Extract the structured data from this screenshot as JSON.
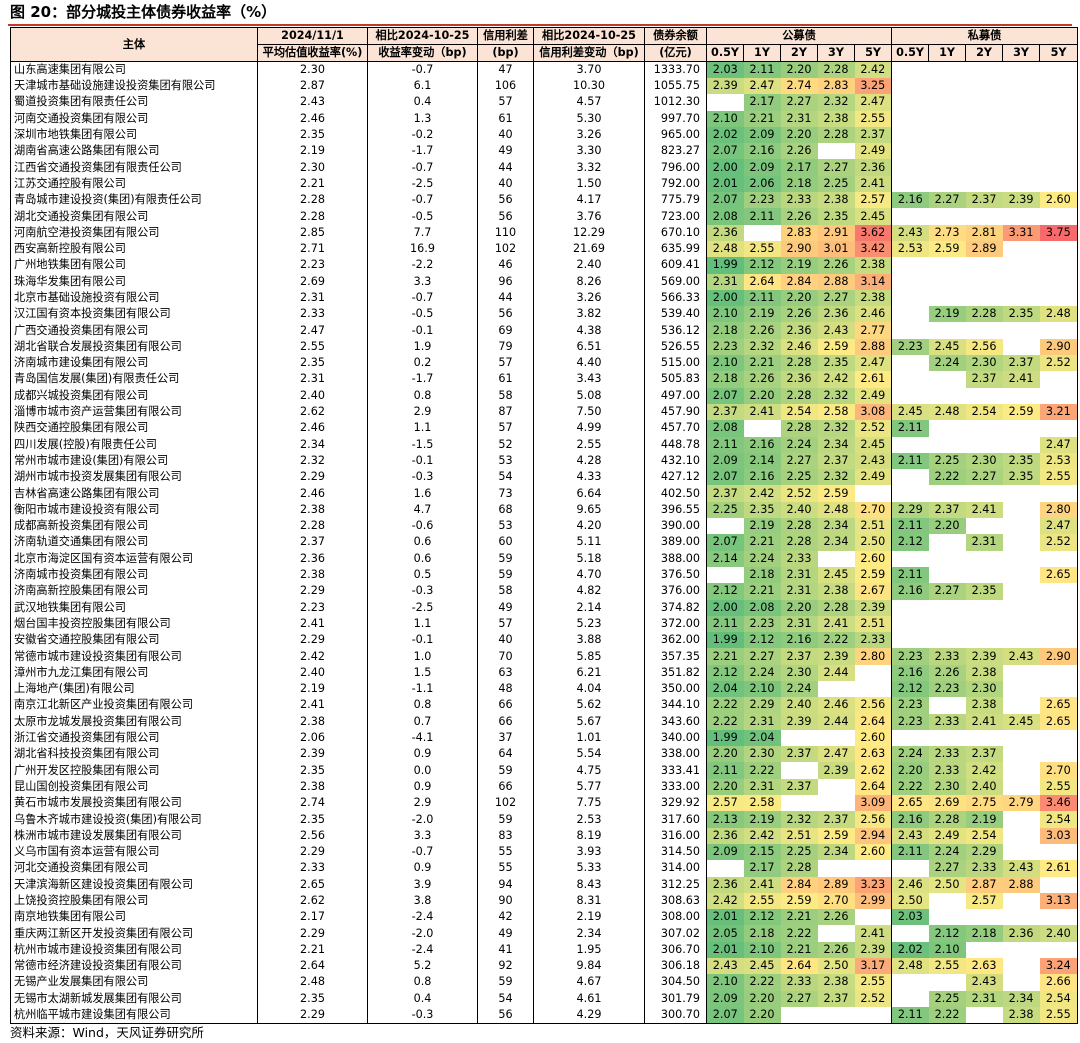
{
  "figure_title": "图 20：部分城投主体债券收益率（%）",
  "source": "资料来源：Wind，天风证券研究所",
  "header": {
    "entity": "主体",
    "col1": [
      "2024/11/1",
      "平均估值收益率(%)"
    ],
    "col2": [
      "相比2024-10-25",
      "收益率变动（bp)"
    ],
    "col3": [
      "信用利差",
      "(bp)"
    ],
    "col4": [
      "相比2024-10-25",
      "信用利差变动（bp)"
    ],
    "col5": [
      "债券余额",
      "(亿元)"
    ],
    "public_group": "公募债",
    "private_group": "私募债",
    "tenors": [
      "0.5Y",
      "1Y",
      "2Y",
      "3Y",
      "5Y"
    ]
  },
  "rows": [
    [
      "山东高速集团有限公司",
      "2.30",
      "-0.7",
      "47",
      "3.70",
      "1333.70",
      [
        "2.03",
        "2.11",
        "2.20",
        "2.28",
        "2.42"
      ],
      [
        "",
        "",
        "",
        "",
        ""
      ]
    ],
    [
      "天津城市基础设施建设投资集团有限公司",
      "2.87",
      "6.1",
      "106",
      "10.30",
      "1055.75",
      [
        "2.39",
        "2.47",
        "2.74",
        "2.83",
        "3.25"
      ],
      [
        "",
        "",
        "",
        "",
        ""
      ]
    ],
    [
      "蜀道投资集团有限责任公司",
      "2.43",
      "0.4",
      "57",
      "4.57",
      "1012.30",
      [
        "",
        "2.17",
        "2.27",
        "2.32",
        "2.47"
      ],
      [
        "",
        "",
        "",
        "",
        ""
      ]
    ],
    [
      "河南交通投资集团有限公司",
      "2.46",
      "1.3",
      "61",
      "5.30",
      "997.70",
      [
        "2.10",
        "2.21",
        "2.31",
        "2.38",
        "2.55"
      ],
      [
        "",
        "",
        "",
        "",
        ""
      ]
    ],
    [
      "深圳市地铁集团有限公司",
      "2.35",
      "-0.2",
      "40",
      "3.26",
      "965.00",
      [
        "2.02",
        "2.09",
        "2.20",
        "2.28",
        "2.37"
      ],
      [
        "",
        "",
        "",
        "",
        ""
      ]
    ],
    [
      "湖南省高速公路集团有限公司",
      "2.19",
      "-1.7",
      "49",
      "3.30",
      "823.27",
      [
        "2.07",
        "2.16",
        "2.26",
        "",
        "2.49"
      ],
      [
        "",
        "",
        "",
        "",
        ""
      ]
    ],
    [
      "江西省交通投资集团有限责任公司",
      "2.30",
      "-0.7",
      "44",
      "3.32",
      "796.00",
      [
        "2.00",
        "2.09",
        "2.17",
        "2.27",
        "2.36"
      ],
      [
        "",
        "",
        "",
        "",
        ""
      ]
    ],
    [
      "江苏交通控股有限公司",
      "2.21",
      "-2.5",
      "40",
      "1.50",
      "792.00",
      [
        "2.01",
        "2.06",
        "2.18",
        "2.25",
        "2.41"
      ],
      [
        "",
        "",
        "",
        "",
        ""
      ]
    ],
    [
      "青岛城市建设投资(集团)有限责任公司",
      "2.28",
      "-0.7",
      "56",
      "4.17",
      "775.79",
      [
        "2.07",
        "2.23",
        "2.33",
        "2.38",
        "2.57"
      ],
      [
        "2.16",
        "2.27",
        "2.37",
        "2.39",
        "2.60"
      ]
    ],
    [
      "湖北交通投资集团有限公司",
      "2.28",
      "-0.5",
      "56",
      "3.76",
      "723.00",
      [
        "2.08",
        "2.11",
        "2.26",
        "2.35",
        "2.45"
      ],
      [
        "",
        "",
        "",
        "",
        ""
      ]
    ],
    [
      "河南航空港投资集团有限公司",
      "2.85",
      "7.7",
      "110",
      "12.29",
      "670.10",
      [
        "2.36",
        "",
        "2.83",
        "2.91",
        "3.62"
      ],
      [
        "2.43",
        "2.73",
        "2.81",
        "3.31",
        "3.75"
      ]
    ],
    [
      "西安高新控股有限公司",
      "2.71",
      "16.9",
      "102",
      "21.69",
      "635.99",
      [
        "2.48",
        "2.55",
        "2.90",
        "3.01",
        "3.42"
      ],
      [
        "2.53",
        "2.59",
        "2.89",
        "",
        ""
      ]
    ],
    [
      "广州地铁集团有限公司",
      "2.23",
      "-2.2",
      "46",
      "2.40",
      "609.41",
      [
        "1.99",
        "2.12",
        "2.19",
        "2.26",
        "2.38"
      ],
      [
        "",
        "",
        "",
        "",
        ""
      ]
    ],
    [
      "珠海华发集团有限公司",
      "2.69",
      "3.3",
      "96",
      "8.26",
      "569.00",
      [
        "2.31",
        "2.64",
        "2.84",
        "2.88",
        "3.14"
      ],
      [
        "",
        "",
        "",
        "",
        ""
      ]
    ],
    [
      "北京市基础设施投资有限公司",
      "2.31",
      "-0.7",
      "44",
      "3.26",
      "566.33",
      [
        "2.00",
        "2.11",
        "2.20",
        "2.27",
        "2.38"
      ],
      [
        "",
        "",
        "",
        "",
        ""
      ]
    ],
    [
      "汉江国有资本投资集团有限公司",
      "2.33",
      "-0.5",
      "56",
      "3.82",
      "539.40",
      [
        "2.10",
        "2.19",
        "2.26",
        "2.36",
        "2.46"
      ],
      [
        "",
        "2.19",
        "2.28",
        "2.35",
        "2.48"
      ]
    ],
    [
      "广西交通投资集团有限公司",
      "2.47",
      "-0.1",
      "69",
      "4.38",
      "536.12",
      [
        "2.18",
        "2.26",
        "2.36",
        "2.43",
        "2.77"
      ],
      [
        "",
        "",
        "",
        "",
        ""
      ]
    ],
    [
      "湖北省联合发展投资集团有限公司",
      "2.55",
      "1.9",
      "79",
      "6.51",
      "526.55",
      [
        "2.23",
        "2.32",
        "2.46",
        "2.59",
        "2.88"
      ],
      [
        "2.23",
        "2.45",
        "2.56",
        "",
        "2.90"
      ]
    ],
    [
      "济南城市建设集团有限公司",
      "2.35",
      "0.2",
      "57",
      "4.40",
      "515.00",
      [
        "2.10",
        "2.21",
        "2.28",
        "2.35",
        "2.47"
      ],
      [
        "",
        "2.24",
        "2.30",
        "2.37",
        "2.52"
      ]
    ],
    [
      "青岛国信发展(集团)有限责任公司",
      "2.31",
      "-1.7",
      "61",
      "3.43",
      "505.83",
      [
        "2.18",
        "2.26",
        "2.36",
        "2.42",
        "2.61"
      ],
      [
        "",
        "",
        "2.37",
        "2.41",
        ""
      ]
    ],
    [
      "成都兴城投资集团有限公司",
      "2.40",
      "0.8",
      "58",
      "5.08",
      "497.00",
      [
        "2.07",
        "2.20",
        "2.28",
        "2.32",
        "2.49"
      ],
      [
        "",
        "",
        "",
        "",
        ""
      ]
    ],
    [
      "淄博市城市资产运营集团有限公司",
      "2.62",
      "2.9",
      "87",
      "7.50",
      "457.90",
      [
        "2.37",
        "2.41",
        "2.54",
        "2.58",
        "3.08"
      ],
      [
        "2.45",
        "2.48",
        "2.54",
        "2.59",
        "3.21"
      ]
    ],
    [
      "陕西交通控股集团有限公司",
      "2.46",
      "1.1",
      "57",
      "4.99",
      "457.70",
      [
        "2.08",
        "",
        "2.28",
        "2.32",
        "2.52"
      ],
      [
        "2.11",
        "",
        "",
        "",
        ""
      ]
    ],
    [
      "四川发展(控股)有限责任公司",
      "2.34",
      "-1.5",
      "52",
      "2.55",
      "448.78",
      [
        "2.11",
        "2.16",
        "2.24",
        "2.34",
        "2.45"
      ],
      [
        "",
        "",
        "",
        "",
        "2.47"
      ]
    ],
    [
      "常州市城市建设(集团)有限公司",
      "2.32",
      "-0.1",
      "53",
      "4.28",
      "432.10",
      [
        "2.09",
        "2.14",
        "2.27",
        "2.37",
        "2.43"
      ],
      [
        "2.11",
        "2.25",
        "2.30",
        "2.35",
        "2.53"
      ]
    ],
    [
      "湖州市城市投资发展集团有限公司",
      "2.29",
      "-0.3",
      "54",
      "4.33",
      "427.12",
      [
        "2.07",
        "2.16",
        "2.25",
        "2.32",
        "2.49"
      ],
      [
        "",
        "2.22",
        "2.27",
        "2.35",
        "2.55"
      ]
    ],
    [
      "吉林省高速公路集团有限公司",
      "2.46",
      "1.6",
      "73",
      "6.64",
      "402.50",
      [
        "2.37",
        "2.42",
        "2.52",
        "2.59",
        ""
      ],
      [
        "",
        "",
        "",
        "",
        ""
      ]
    ],
    [
      "衡阳市城市建设投资有限公司",
      "2.38",
      "4.7",
      "68",
      "9.65",
      "396.55",
      [
        "2.25",
        "2.35",
        "2.40",
        "2.48",
        "2.70"
      ],
      [
        "2.29",
        "2.37",
        "2.41",
        "",
        "2.80"
      ]
    ],
    [
      "成都高新投资集团有限公司",
      "2.28",
      "-0.6",
      "53",
      "4.20",
      "390.00",
      [
        "",
        "2.19",
        "2.28",
        "2.34",
        "2.51"
      ],
      [
        "2.11",
        "2.20",
        "",
        "",
        "2.47"
      ]
    ],
    [
      "济南轨道交通集团有限公司",
      "2.37",
      "0.6",
      "60",
      "5.11",
      "389.00",
      [
        "2.07",
        "2.21",
        "2.28",
        "2.34",
        "2.50"
      ],
      [
        "2.12",
        "",
        "2.31",
        "",
        "2.52"
      ]
    ],
    [
      "北京市海淀区国有资本运营有限公司",
      "2.36",
      "0.6",
      "59",
      "5.18",
      "388.00",
      [
        "2.14",
        "2.24",
        "2.33",
        "",
        "2.60"
      ],
      [
        "",
        "",
        "",
        "",
        ""
      ]
    ],
    [
      "济南城市投资集团有限公司",
      "2.38",
      "0.5",
      "59",
      "4.70",
      "376.50",
      [
        "",
        "2.18",
        "2.31",
        "2.45",
        "2.59"
      ],
      [
        "2.11",
        "",
        "",
        "",
        "2.65"
      ]
    ],
    [
      "济南高新控股集团有限公司",
      "2.29",
      "-0.3",
      "58",
      "4.82",
      "376.00",
      [
        "2.12",
        "2.21",
        "2.31",
        "2.38",
        "2.67"
      ],
      [
        "2.16",
        "2.27",
        "2.35",
        "",
        ""
      ]
    ],
    [
      "武汉地铁集团有限公司",
      "2.23",
      "-2.5",
      "49",
      "2.14",
      "374.82",
      [
        "2.00",
        "2.08",
        "2.20",
        "2.28",
        "2.39"
      ],
      [
        "",
        "",
        "",
        "",
        ""
      ]
    ],
    [
      "烟台国丰投资控股集团有限公司",
      "2.41",
      "1.1",
      "57",
      "5.23",
      "372.00",
      [
        "2.11",
        "2.23",
        "2.31",
        "2.41",
        "2.51"
      ],
      [
        "",
        "",
        "",
        "",
        ""
      ]
    ],
    [
      "安徽省交通控股集团有限公司",
      "2.29",
      "-0.1",
      "40",
      "3.88",
      "362.00",
      [
        "1.99",
        "2.12",
        "2.16",
        "2.22",
        "2.33"
      ],
      [
        "",
        "",
        "",
        "",
        ""
      ]
    ],
    [
      "常德市城市建设投资集团有限公司",
      "2.42",
      "1.0",
      "70",
      "5.85",
      "357.35",
      [
        "2.21",
        "2.27",
        "2.37",
        "2.39",
        "2.80"
      ],
      [
        "2.23",
        "2.33",
        "2.39",
        "2.43",
        "2.90"
      ]
    ],
    [
      "漳州市九龙江集团有限公司",
      "2.40",
      "1.5",
      "63",
      "6.21",
      "351.82",
      [
        "2.12",
        "2.24",
        "2.30",
        "2.44",
        ""
      ],
      [
        "2.16",
        "2.26",
        "2.38",
        "",
        ""
      ]
    ],
    [
      "上海地产(集团)有限公司",
      "2.19",
      "-1.1",
      "48",
      "4.04",
      "350.00",
      [
        "2.04",
        "2.10",
        "2.24",
        "",
        ""
      ],
      [
        "2.12",
        "2.23",
        "2.30",
        "",
        ""
      ]
    ],
    [
      "南京江北新区产业投资集团有限公司",
      "2.41",
      "0.8",
      "66",
      "5.62",
      "344.10",
      [
        "2.22",
        "2.29",
        "2.40",
        "2.46",
        "2.56"
      ],
      [
        "2.23",
        "",
        "2.38",
        "",
        "2.65"
      ]
    ],
    [
      "太原市龙城发展投资集团有限公司",
      "2.38",
      "0.7",
      "66",
      "5.67",
      "343.60",
      [
        "2.22",
        "2.31",
        "2.39",
        "2.44",
        "2.64"
      ],
      [
        "2.23",
        "2.33",
        "2.41",
        "2.45",
        "2.65"
      ]
    ],
    [
      "浙江省交通投资集团有限公司",
      "2.06",
      "-4.1",
      "37",
      "1.01",
      "340.00",
      [
        "1.99",
        "2.04",
        "",
        "",
        "2.60"
      ],
      [
        "",
        "",
        "",
        "",
        ""
      ]
    ],
    [
      "湖北省科技投资集团有限公司",
      "2.39",
      "0.9",
      "64",
      "5.54",
      "338.00",
      [
        "2.20",
        "2.30",
        "2.37",
        "2.47",
        "2.63"
      ],
      [
        "2.24",
        "2.33",
        "2.37",
        "",
        ""
      ]
    ],
    [
      "广州开发区控股集团有限公司",
      "2.35",
      "0.0",
      "59",
      "4.75",
      "333.41",
      [
        "2.11",
        "2.22",
        "",
        "2.39",
        "2.62"
      ],
      [
        "2.20",
        "2.33",
        "2.42",
        "",
        "2.70"
      ]
    ],
    [
      "昆山国创投资集团有限公司",
      "2.38",
      "0.9",
      "66",
      "5.77",
      "333.00",
      [
        "2.20",
        "2.31",
        "2.37",
        "",
        "2.64"
      ],
      [
        "2.22",
        "2.30",
        "2.40",
        "",
        "2.55"
      ]
    ],
    [
      "黄石市城市发展投资集团有限公司",
      "2.74",
      "2.9",
      "102",
      "7.75",
      "329.92",
      [
        "2.57",
        "2.58",
        "",
        "",
        "3.09"
      ],
      [
        "2.65",
        "2.69",
        "2.75",
        "2.79",
        "3.46"
      ]
    ],
    [
      "乌鲁木齐城市建设投资(集团)有限公司",
      "2.35",
      "-2.0",
      "59",
      "2.53",
      "317.60",
      [
        "2.13",
        "2.19",
        "2.32",
        "2.37",
        "2.56"
      ],
      [
        "2.16",
        "2.28",
        "2.19",
        "",
        "2.54"
      ]
    ],
    [
      "株洲市城市建设发展集团有限公司",
      "2.56",
      "3.3",
      "83",
      "8.19",
      "316.00",
      [
        "2.36",
        "2.42",
        "2.51",
        "2.59",
        "2.94"
      ],
      [
        "2.43",
        "2.49",
        "2.54",
        "",
        "3.03"
      ]
    ],
    [
      "义乌市国有资本运营有限公司",
      "2.29",
      "-0.7",
      "55",
      "3.93",
      "314.50",
      [
        "2.09",
        "2.15",
        "2.25",
        "2.34",
        "2.60"
      ],
      [
        "2.11",
        "2.24",
        "2.29",
        "",
        ""
      ]
    ],
    [
      "河北交通投资集团有限公司",
      "2.33",
      "0.9",
      "55",
      "5.33",
      "314.00",
      [
        "",
        "2.17",
        "2.28",
        "",
        ""
      ],
      [
        "",
        "2.27",
        "2.33",
        "2.43",
        "2.61"
      ]
    ],
    [
      "天津滨海新区建设投资集团有限公司",
      "2.65",
      "3.9",
      "94",
      "8.43",
      "312.25",
      [
        "2.36",
        "2.41",
        "2.84",
        "2.89",
        "3.23"
      ],
      [
        "2.46",
        "2.50",
        "2.87",
        "2.88",
        ""
      ]
    ],
    [
      "上饶投资控股集团有限公司",
      "2.62",
      "3.8",
      "90",
      "8.31",
      "308.63",
      [
        "2.42",
        "2.55",
        "2.59",
        "2.70",
        "2.99"
      ],
      [
        "2.50",
        "",
        "2.57",
        "",
        "3.13"
      ]
    ],
    [
      "南京地铁集团有限公司",
      "2.17",
      "-2.4",
      "42",
      "2.19",
      "308.00",
      [
        "2.01",
        "2.12",
        "2.21",
        "2.26",
        ""
      ],
      [
        "2.03",
        "",
        "",
        "",
        ""
      ]
    ],
    [
      "重庆两江新区开发投资集团有限公司",
      "2.29",
      "-2.0",
      "49",
      "2.34",
      "307.02",
      [
        "2.05",
        "2.18",
        "2.22",
        "",
        "2.41"
      ],
      [
        "",
        "2.12",
        "2.18",
        "2.36",
        "2.40"
      ]
    ],
    [
      "杭州市城市建设投资集团有限公司",
      "2.21",
      "-2.4",
      "41",
      "1.95",
      "306.70",
      [
        "2.01",
        "2.10",
        "2.21",
        "2.26",
        "2.39"
      ],
      [
        "2.02",
        "2.10",
        "",
        "",
        ""
      ]
    ],
    [
      "常德市经济建设投资集团有限公司",
      "2.64",
      "5.2",
      "92",
      "9.84",
      "306.18",
      [
        "2.43",
        "2.45",
        "2.64",
        "2.50",
        "3.17"
      ],
      [
        "2.48",
        "2.55",
        "2.63",
        "",
        "3.24"
      ]
    ],
    [
      "无锡产业发展集团有限公司",
      "2.48",
      "0.8",
      "59",
      "4.67",
      "304.50",
      [
        "2.10",
        "2.22",
        "2.33",
        "2.38",
        "2.55"
      ],
      [
        "",
        "",
        "2.43",
        "",
        "2.66"
      ]
    ],
    [
      "无锡市太湖新城发展集团有限公司",
      "2.35",
      "0.4",
      "54",
      "4.61",
      "301.79",
      [
        "2.09",
        "2.20",
        "2.27",
        "2.37",
        "2.52"
      ],
      [
        "",
        "2.25",
        "2.31",
        "2.34",
        "2.54"
      ]
    ],
    [
      "杭州临平城市建设集团有限公司",
      "2.29",
      "-0.3",
      "56",
      "4.29",
      "300.70",
      [
        "2.07",
        "2.20",
        "",
        "",
        ""
      ],
      [
        "2.11",
        "2.22",
        "",
        "2.38",
        "2.55"
      ]
    ]
  ],
  "scale": {
    "min": 1.99,
    "max": 3.75,
    "low_color": "#63be7b",
    "mid_color": "#ffeb84",
    "high_color": "#f8696b"
  }
}
